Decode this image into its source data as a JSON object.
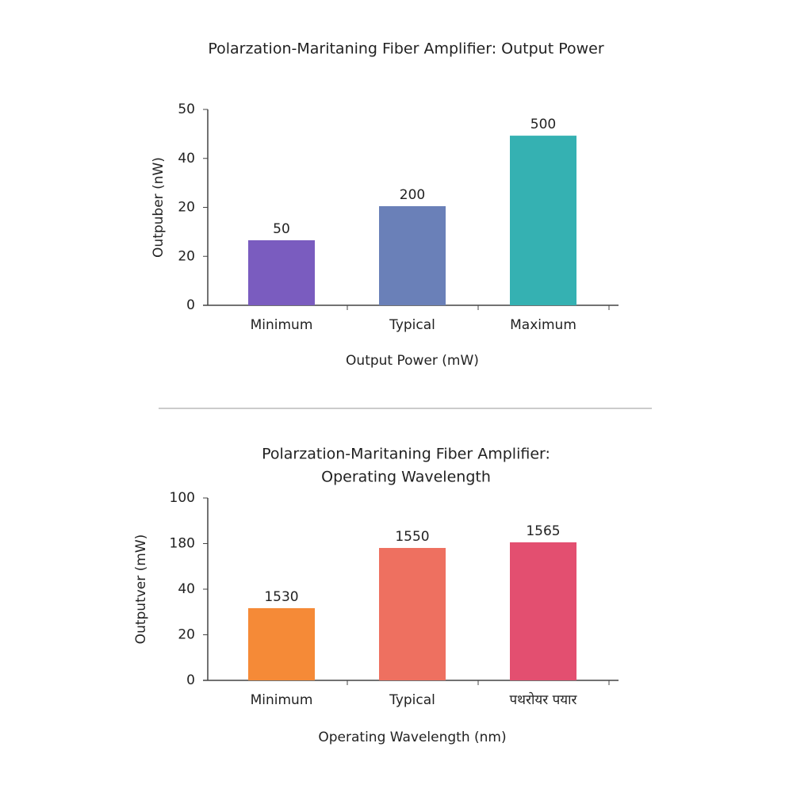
{
  "chart_data": [
    {
      "type": "bar",
      "title": [
        "Polarzation-Maritaning Fiber Amplifier: Output Power"
      ],
      "ylabel": "Outpuber (nW)",
      "xlabel": "Output Power (mW)",
      "categories": [
        "Minimum",
        "Typical",
        "Maximum"
      ],
      "values": [
        16.6,
        25.3,
        43.3
      ],
      "bar_labels": [
        "50",
        "200",
        "500"
      ],
      "colors": [
        "#7a5cbf",
        "#6a80b8",
        "#35b1b2"
      ],
      "ylim": [
        0,
        50
      ],
      "yticks": [
        0,
        {
          "value": 12.5,
          "label": "20"
        },
        {
          "value": 25,
          "label": "20"
        },
        {
          "value": 37.5,
          "label": "40"
        },
        50
      ]
    },
    {
      "type": "bar",
      "title": [
        "Polarzation-Maritaning Fiber Amplifier:",
        "Operating Wavelength"
      ],
      "ylabel": "Outputver (mW)",
      "xlabel": "Operating Wavelength (nm)",
      "categories": [
        "Minimum",
        "Typical",
        "पथरोयर पयार"
      ],
      "values": [
        39.6,
        72.6,
        75.7
      ],
      "bar_labels": [
        "1530",
        "1550",
        "1565"
      ],
      "colors": [
        "#f58a37",
        "#ee7060",
        "#e34f70"
      ],
      "ylim": [
        0,
        100
      ],
      "yticks": [
        0,
        {
          "value": 25,
          "label": "20"
        },
        {
          "value": 50,
          "label": "40"
        },
        {
          "value": 75,
          "label": "180"
        },
        100
      ]
    }
  ]
}
